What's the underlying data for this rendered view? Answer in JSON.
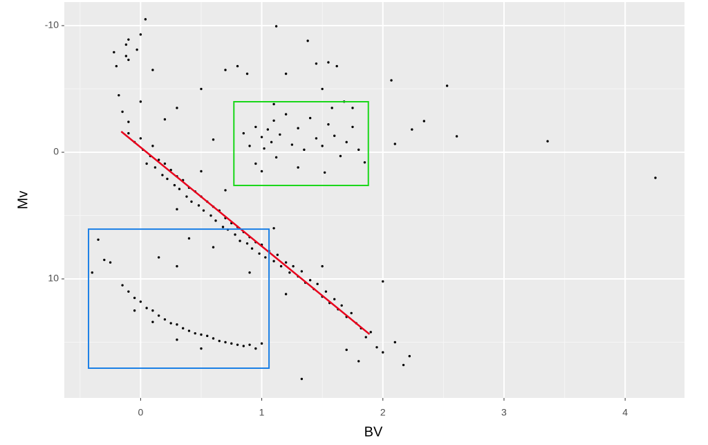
{
  "chart_data": {
    "type": "scatter",
    "x_label": "BV",
    "y_label": "Mv",
    "xlim": [
      -0.63,
      4.49
    ],
    "ylim": [
      19.4,
      -11.86
    ],
    "xticks": [
      0,
      1,
      2,
      3,
      4
    ],
    "yticks": [
      -10,
      0,
      10
    ],
    "grid": true,
    "color": "#000000",
    "x": [
      -0.1,
      -0.05,
      0,
      0.02,
      0.05,
      0.08,
      0.1,
      0.12,
      0.15,
      0.18,
      0.2,
      0.22,
      0.25,
      0.28,
      0.3,
      0.32,
      0.35,
      0.38,
      0.4,
      0.42,
      0.45,
      0.48,
      0.5,
      0.52,
      0.55,
      0.58,
      0.6,
      0.62,
      0.65,
      0.68,
      0.7,
      0.72,
      0.75,
      0.78,
      0.8,
      0.82,
      0.85,
      0.88,
      0.9,
      0.92,
      0.95,
      0.98,
      1.0,
      1.03,
      1.06,
      1.1,
      1.13,
      1.16,
      1.2,
      1.23,
      1.26,
      1.3,
      1.33,
      1.36,
      1.4,
      1.43,
      1.46,
      1.5,
      1.53,
      1.56,
      1.6,
      1.63,
      1.66,
      1.7,
      1.74,
      1.78,
      1.82,
      1.86,
      1.9,
      1.95,
      2.0,
      2.17,
      0.3,
      0.5,
      0.7,
      0.6,
      0.9,
      1.1,
      0.4,
      1.2,
      1.5,
      1.7,
      1.8,
      0.2,
      -0.15,
      -0.2,
      -0.22,
      -0.18,
      -0.1,
      0.0,
      0.1,
      0.3,
      0.5,
      0.6,
      0.8,
      0.7,
      -0.12,
      -0.03,
      0.0,
      -0.1,
      0.85,
      0.9,
      0.95,
      1.0,
      1.02,
      1.05,
      1.08,
      1.1,
      1.12,
      1.15,
      1.2,
      1.25,
      1.3,
      1.35,
      1.4,
      1.45,
      1.5,
      1.55,
      1.6,
      1.65,
      1.7,
      1.75,
      1.8,
      1.85,
      1.58,
      1.62,
      1.45,
      1.2,
      1.5,
      1.1,
      0.95,
      1.0,
      1.3,
      1.52,
      1.68,
      1.38,
      1.55,
      1.75,
      0.88,
      -0.15,
      -0.1,
      -0.05,
      0,
      0.05,
      0.1,
      0.15,
      0.2,
      0.25,
      0.3,
      0.35,
      0.4,
      0.45,
      0.5,
      0.55,
      0.6,
      0.65,
      0.7,
      0.75,
      0.8,
      0.85,
      0.9,
      0.95,
      1.0,
      -0.05,
      0.1,
      0.3,
      0.5,
      -0.3,
      -0.4,
      -0.25,
      -0.35,
      0.15,
      0.3,
      2.07,
      2.34,
      2.53,
      2.61,
      2.24,
      2.1,
      3.36,
      4.25,
      0.04,
      1.12,
      1.33,
      2.0,
      2.1,
      2.22,
      -0.1,
      -0.12
    ],
    "y": [
      -1.5,
      -0.8,
      -1.1,
      -0.2,
      0.9,
      0.3,
      -0.5,
      1.2,
      0.6,
      1.8,
      0.9,
      2.1,
      1.4,
      2.6,
      1.9,
      2.9,
      2.2,
      3.5,
      2.8,
      3.9,
      3.1,
      4.2,
      3.5,
      4.6,
      3.9,
      5.0,
      4.3,
      5.4,
      4.6,
      5.9,
      5.2,
      6.1,
      5.6,
      6.5,
      5.9,
      7.0,
      6.3,
      7.2,
      6.7,
      7.6,
      7.1,
      8.0,
      7.3,
      8.3,
      7.8,
      8.6,
      8.1,
      9.0,
      8.7,
      9.5,
      9.0,
      9.8,
      9.4,
      10.3,
      10.1,
      10.8,
      10.4,
      11.4,
      11.0,
      11.9,
      11.6,
      12.4,
      12.1,
      13.0,
      12.7,
      13.5,
      13.9,
      14.6,
      14.2,
      15.4,
      15.8,
      16.8,
      4.5,
      1.5,
      3.0,
      7.5,
      9.5,
      6.0,
      6.8,
      11.2,
      9.0,
      15.6,
      16.5,
      -2.6,
      -3.2,
      -6.8,
      -7.9,
      -4.5,
      -2.4,
      -4.0,
      -6.5,
      -3.5,
      -5.0,
      -1.0,
      -6.8,
      -6.5,
      -8.5,
      -8.1,
      -9.3,
      -7.3,
      -1.5,
      -0.5,
      -2.0,
      -1.2,
      -0.3,
      -1.8,
      -0.8,
      -2.5,
      0.4,
      -1.4,
      -3.0,
      -0.6,
      -1.9,
      -0.2,
      -2.7,
      -1.1,
      -0.5,
      -2.2,
      -1.3,
      0.3,
      -0.8,
      -2.0,
      -0.2,
      0.8,
      -3.5,
      -6.8,
      -7.0,
      -6.2,
      -5.0,
      -3.8,
      0.9,
      1.5,
      1.2,
      1.6,
      -4.0,
      -8.8,
      -7.1,
      -3.5,
      -6.2,
      10.5,
      11.0,
      11.5,
      11.8,
      12.3,
      12.5,
      12.9,
      13.2,
      13.5,
      13.6,
      13.9,
      14.1,
      14.3,
      14.4,
      14.5,
      14.7,
      14.9,
      15.0,
      15.1,
      15.2,
      15.3,
      15.2,
      15.5,
      15.1,
      12.5,
      13.4,
      14.8,
      15.5,
      8.5,
      9.5,
      8.7,
      6.9,
      8.3,
      9.0,
      -5.68,
      -2.46,
      -5.25,
      -1.26,
      -1.8,
      -0.66,
      -0.87,
      2.02,
      -10.5,
      -9.95,
      17.9,
      10.2,
      15.0,
      16.1,
      -8.9,
      -7.6
    ],
    "fit_line": {
      "x": [
        -0.16,
        1.89
      ],
      "y": [
        -1.64,
        14.37
      ],
      "color": "#e8001c"
    },
    "regions": [
      {
        "x": [
          0.77,
          1.88
        ],
        "y": [
          -3.99,
          2.62
        ],
        "color": "#17d617"
      },
      {
        "x": [
          -0.43,
          1.06
        ],
        "y": [
          6.07,
          17.05
        ],
        "color": "#1a7fe6"
      }
    ]
  }
}
